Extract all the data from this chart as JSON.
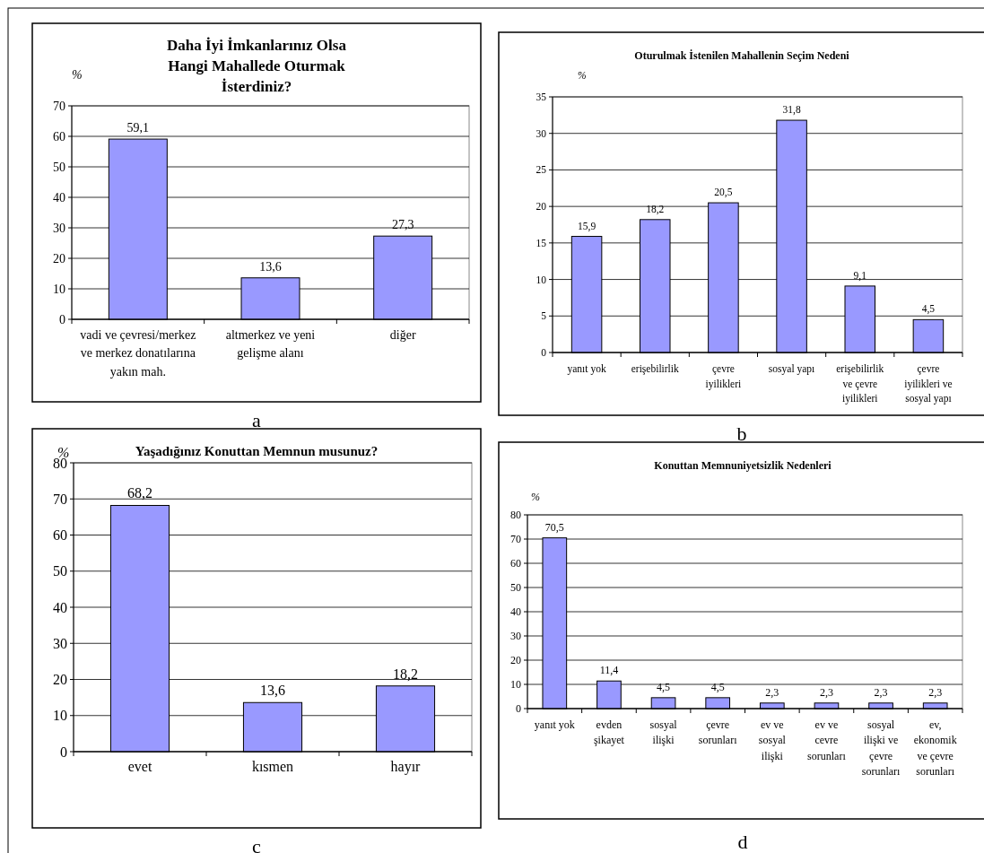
{
  "chart_data": [
    {
      "type": "bar",
      "title": "Daha İyi İmkanlarınız Olsa Hangi Mahallede Oturmak İsterdiniz?",
      "ylabel": "%",
      "categories": [
        "vadi ve çevresi/merkez ve merkez donatılarına yakın mah.",
        "altmerkez ve yeni gelişme alanı",
        "diğer"
      ],
      "values": [
        59.1,
        13.6,
        27.3
      ],
      "value_labels": [
        "59,1",
        "13,6",
        "27,3"
      ],
      "color": "#9999ff",
      "ylim": [
        0,
        70
      ],
      "yticks": [
        0,
        10,
        20,
        30,
        40,
        50,
        60,
        70
      ],
      "grid": "y",
      "annotations": [
        "a"
      ]
    },
    {
      "type": "bar",
      "title": "Oturulmak İstenilen Mahallenin Seçim Nedeni",
      "ylabel": "%",
      "categories": [
        "yanıt yok",
        "erişebilirlik",
        "çevre iyilikleri",
        "sosyal yapı",
        "erişebilirlik ve çevre iyilikleri",
        "çevre iyilikleri ve sosyal yapı"
      ],
      "values": [
        15.9,
        18.2,
        20.5,
        31.8,
        9.1,
        4.5
      ],
      "value_labels": [
        "15,9",
        "18,2",
        "20,5",
        "31,8",
        "9,1",
        "4,5"
      ],
      "color": "#9999ff",
      "ylim": [
        0,
        35
      ],
      "yticks": [
        0,
        5,
        10,
        15,
        20,
        25,
        30,
        35
      ],
      "grid": "y",
      "annotations": [
        "b"
      ]
    },
    {
      "type": "bar",
      "title": "Yaşadığınız Konuttan Memnun musunuz?",
      "ylabel": "%",
      "categories": [
        "evet",
        "kısmen",
        "hayır"
      ],
      "values": [
        68.2,
        13.6,
        18.2
      ],
      "value_labels": [
        "68,2",
        "13,6",
        "18,2"
      ],
      "color": "#9999ff",
      "ylim": [
        0,
        80
      ],
      "yticks": [
        0,
        10,
        20,
        30,
        40,
        50,
        60,
        70,
        80
      ],
      "grid": "y",
      "annotations": [
        "c"
      ]
    },
    {
      "type": "bar",
      "title": "Konuttan Memnuniyetsizlik Nedenleri",
      "ylabel": "%",
      "categories": [
        "yanıt yok",
        "evden şikayet",
        "sosyal ilişki",
        "çevre sorunları",
        "ev  ve sosyal ilişki",
        "ev ve cevre sorunları",
        "sosyal ilişki ve çevre sorunları",
        "ev, ekonomik ve çevre sorunları"
      ],
      "values": [
        70.5,
        11.4,
        4.5,
        4.5,
        2.3,
        2.3,
        2.3,
        2.3
      ],
      "value_labels": [
        "70,5",
        "11,4",
        "4,5",
        "4,5",
        "2,3",
        "2,3",
        "2,3",
        "2,3"
      ],
      "color": "#9999ff",
      "ylim": [
        0,
        80
      ],
      "yticks": [
        0,
        10,
        20,
        30,
        40,
        50,
        60,
        70,
        80
      ],
      "grid": "y",
      "annotations": [
        "d"
      ]
    }
  ]
}
